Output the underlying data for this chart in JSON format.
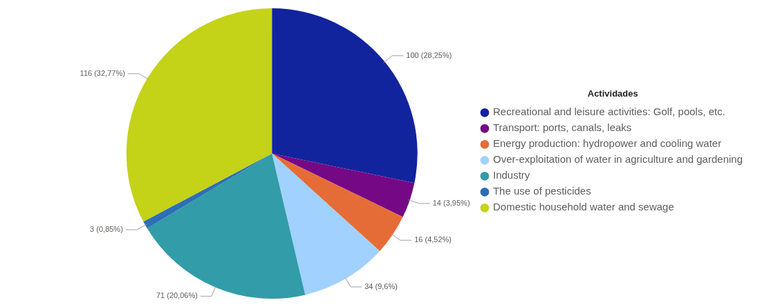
{
  "chart_data": {
    "type": "pie",
    "legend_title": "Actividades",
    "legend": "right",
    "categories": [
      "Recreational and leisure activities: Golf, pools, etc.",
      "Transport: ports, canals, leaks",
      "Energy production: hydropower and cooling water",
      "Over-exploitation of water in agriculture and gardening",
      "Industry",
      "The use of pesticides",
      "Domestic household water and sewage"
    ],
    "values": [
      100,
      14,
      16,
      34,
      71,
      3,
      116
    ],
    "colors": [
      "#12239e",
      "#750985",
      "#e66c37",
      "#a0d1ff",
      "#329ca8",
      "#2c6fb5",
      "#c4d218"
    ],
    "value_labels": [
      "100 (28,25%)",
      "14 (3,95%)",
      "16 (4,52%)",
      "34 (9,6%)",
      "71 (20,06%)",
      "3 (0,85%)",
      "116 (32,77%)"
    ]
  }
}
